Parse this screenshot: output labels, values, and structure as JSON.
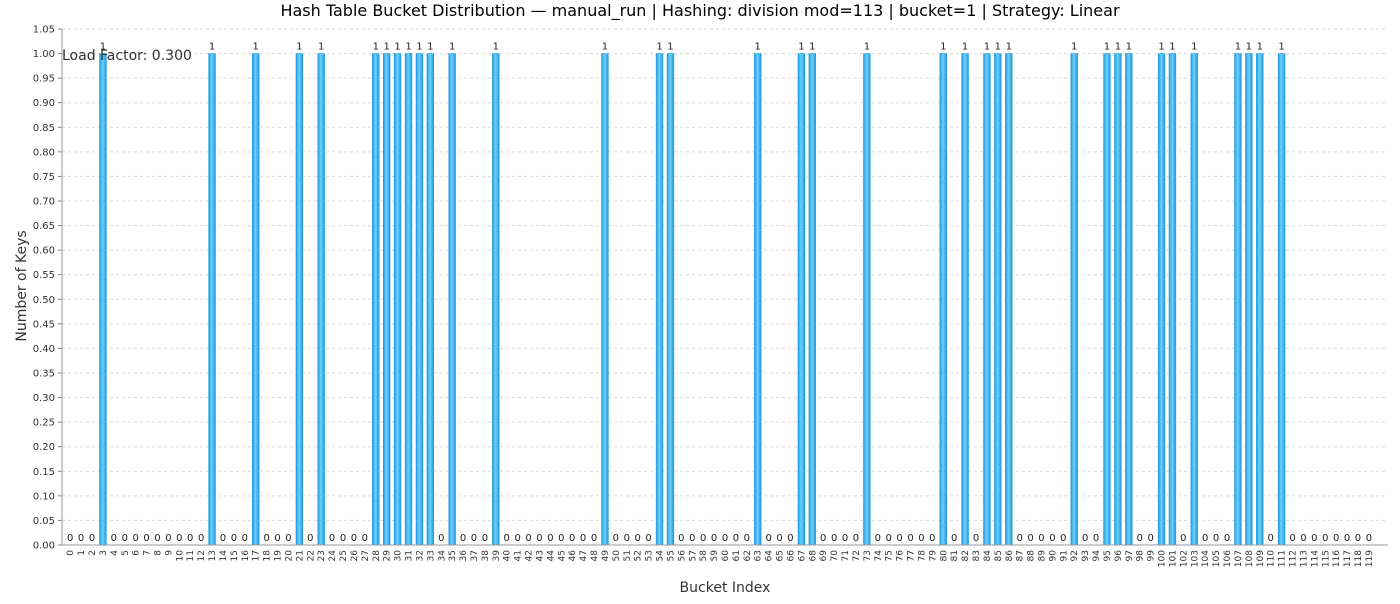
{
  "chart_data": {
    "type": "bar",
    "title": "Hash Table Bucket Distribution — manual_run | Hashing: division mod=113 | bucket=1 | Strategy: Linear",
    "xlabel": "Bucket Index",
    "ylabel": "Number of Keys",
    "annotation": "Load Factor: 0.300",
    "ylim": [
      0,
      1.05
    ],
    "y_ticks": [
      "0.00",
      "0.05",
      "0.10",
      "0.15",
      "0.20",
      "0.25",
      "0.30",
      "0.35",
      "0.40",
      "0.45",
      "0.50",
      "0.55",
      "0.60",
      "0.65",
      "0.70",
      "0.75",
      "0.80",
      "0.85",
      "0.90",
      "0.95",
      "1.00",
      "1.05"
    ],
    "grid": true,
    "categories": [
      "0",
      "1",
      "2",
      "3",
      "4",
      "5",
      "6",
      "7",
      "8",
      "9",
      "10",
      "11",
      "12",
      "13",
      "14",
      "15",
      "16",
      "17",
      "18",
      "19",
      "20",
      "21",
      "22",
      "23",
      "24",
      "25",
      "26",
      "27",
      "28",
      "29",
      "30",
      "31",
      "32",
      "33",
      "34",
      "35",
      "36",
      "37",
      "38",
      "39",
      "40",
      "41",
      "42",
      "43",
      "44",
      "45",
      "46",
      "47",
      "48",
      "49",
      "50",
      "51",
      "52",
      "53",
      "54",
      "55",
      "56",
      "57",
      "58",
      "59",
      "60",
      "61",
      "62",
      "63",
      "64",
      "65",
      "66",
      "67",
      "68",
      "69",
      "70",
      "71",
      "72",
      "73",
      "74",
      "75",
      "76",
      "77",
      "78",
      "79",
      "80",
      "81",
      "82",
      "83",
      "84",
      "85",
      "86",
      "87",
      "88",
      "89",
      "90",
      "91",
      "92",
      "93",
      "94",
      "95",
      "96",
      "97",
      "98",
      "99",
      "100",
      "101",
      "102",
      "103",
      "104",
      "105",
      "106",
      "107",
      "108",
      "109",
      "110",
      "111",
      "112",
      "113",
      "114",
      "115",
      "116",
      "117",
      "118",
      "119"
    ],
    "values": [
      0,
      0,
      0,
      1,
      0,
      0,
      0,
      0,
      0,
      0,
      0,
      0,
      0,
      1,
      0,
      0,
      0,
      1,
      0,
      0,
      0,
      1,
      0,
      1,
      0,
      0,
      0,
      0,
      1,
      1,
      1,
      1,
      1,
      1,
      0,
      1,
      0,
      0,
      0,
      1,
      0,
      0,
      0,
      0,
      0,
      0,
      0,
      0,
      0,
      1,
      0,
      0,
      0,
      0,
      1,
      1,
      0,
      0,
      0,
      0,
      0,
      0,
      0,
      1,
      0,
      0,
      0,
      1,
      1,
      0,
      0,
      0,
      0,
      1,
      0,
      0,
      0,
      0,
      0,
      0,
      1,
      0,
      1,
      0,
      1,
      1,
      1,
      0,
      0,
      0,
      0,
      0,
      1,
      0,
      0,
      1,
      1,
      1,
      0,
      0,
      1,
      1,
      0,
      1,
      0,
      0,
      0,
      1,
      1,
      1,
      0,
      1,
      0,
      0,
      0,
      0,
      0,
      0,
      0,
      0
    ],
    "bar_color": "#1e9be0",
    "bar_highlight": "#6fd0fa"
  }
}
